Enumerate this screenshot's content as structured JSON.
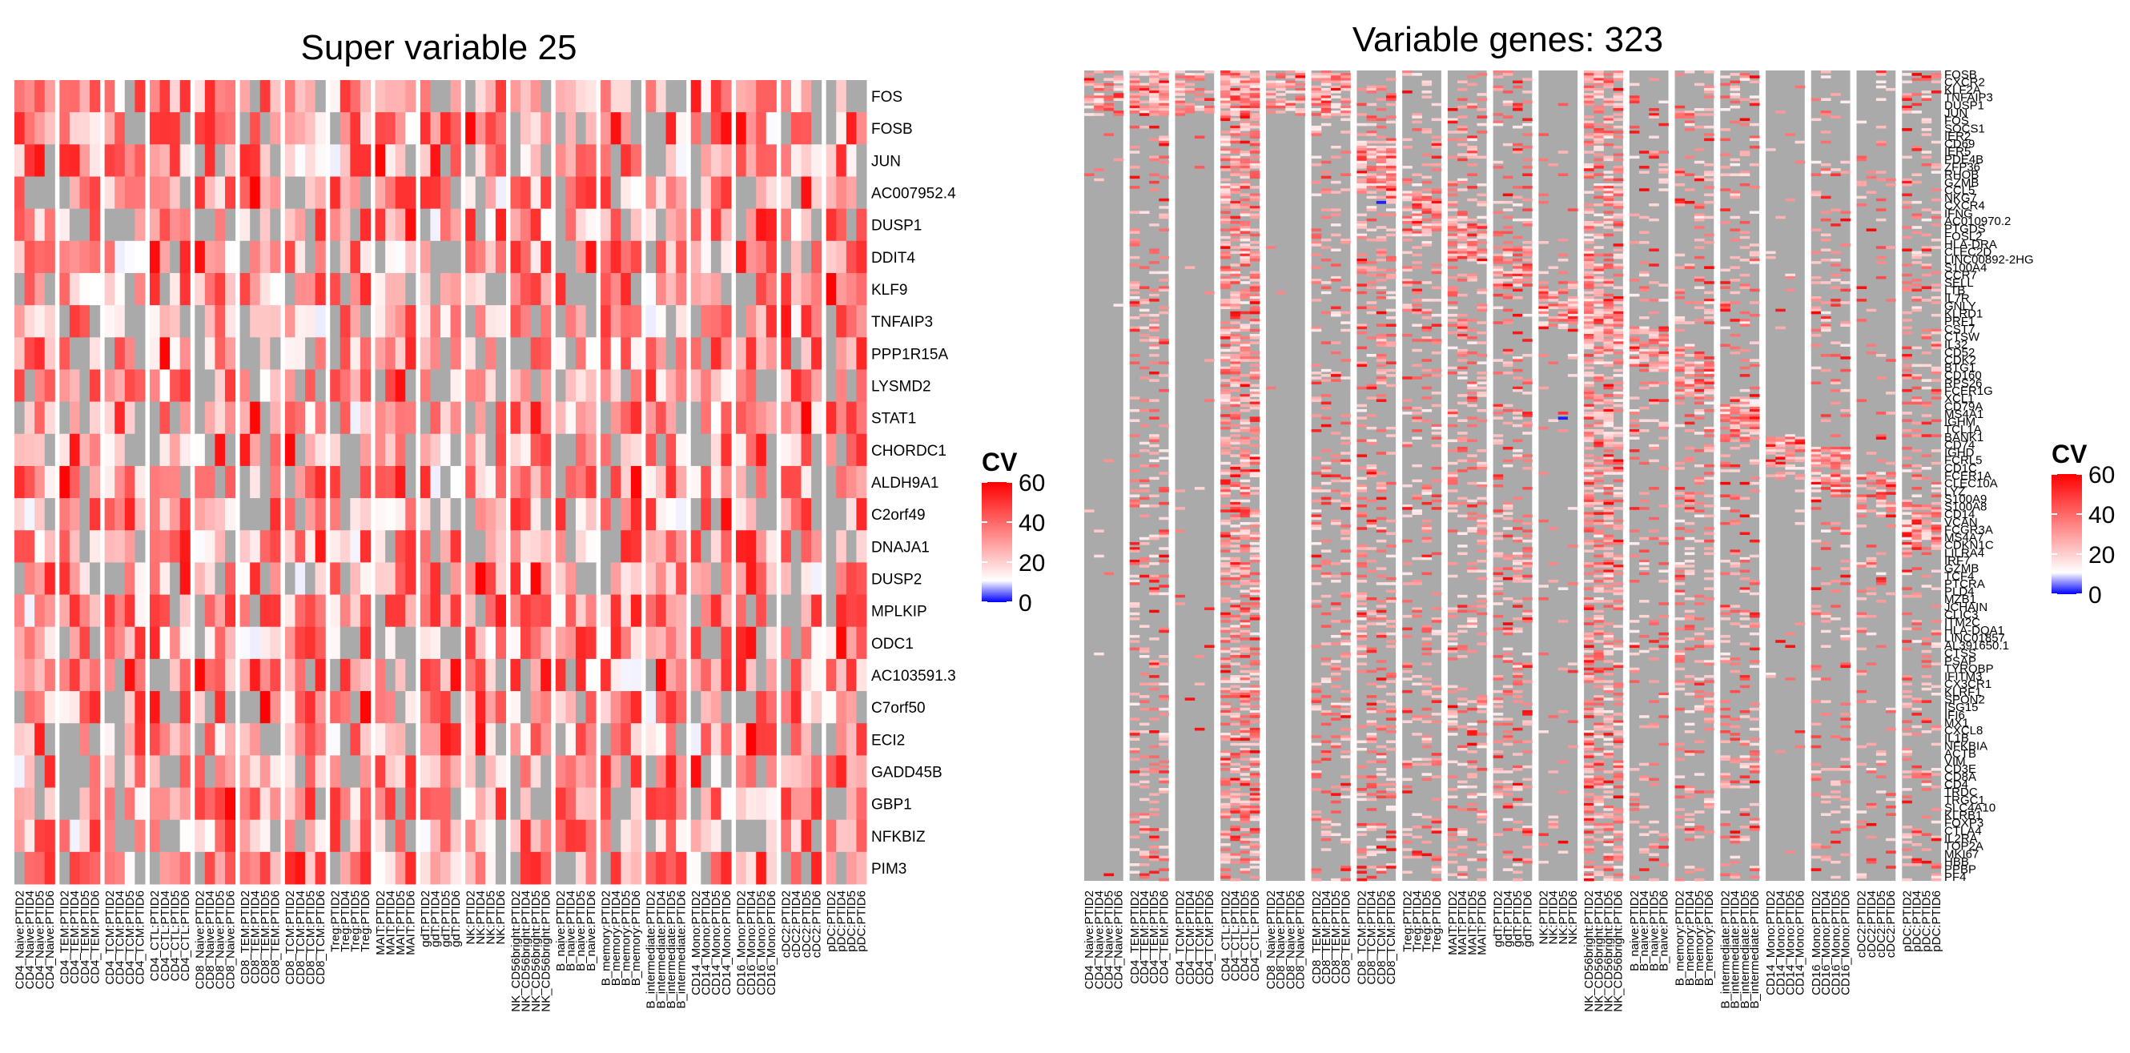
{
  "chart_data": [
    {
      "type": "heatmap",
      "title": "Super variable 25",
      "legend": {
        "title": "CV",
        "ticks": [
          0,
          20,
          40,
          60
        ],
        "range": [
          0,
          60
        ],
        "low_color": "#0000ff",
        "mid_color": "#ffffff",
        "high_color": "#ff0000",
        "na_color": "#aaaaaa"
      },
      "rows": [
        "FOS",
        "FOSB",
        "JUN",
        "AC007952.4",
        "DUSP1",
        "DDIT4",
        "KLF9",
        "TNFAIP3",
        "PPP1R15A",
        "LYSMD2",
        "STAT1",
        "CHORDC1",
        "ALDH9A1",
        "C2orf49",
        "DNAJA1",
        "DUSP2",
        "MPLKIP",
        "ODC1",
        "AC103591.3",
        "C7orf50",
        "ECI2",
        "GADD45B",
        "GBP1",
        "NFKBIZ",
        "PIM3"
      ],
      "column_groups": [
        {
          "name": "CD4_Naive",
          "columns": [
            "CD4_Naive:PTID2",
            "CD4_Naive:PTID4",
            "CD4_Naive:PTID5",
            "CD4_Naive:PTID6"
          ]
        },
        {
          "name": "CD4_TEM",
          "columns": [
            "CD4_TEM:PTID2",
            "CD4_TEM:PTID4",
            "CD4_TEM:PTID5",
            "CD4_TEM:PTID6"
          ]
        },
        {
          "name": "CD4_TCM",
          "columns": [
            "CD4_TCM:PTID2",
            "CD4_TCM:PTID4",
            "CD4_TCM:PTID5",
            "CD4_TCM:PTID6"
          ]
        },
        {
          "name": "CD4_CTL",
          "columns": [
            "CD4_CTL:PTID2",
            "CD4_CTL:PTID4",
            "CD4_CTL:PTID5",
            "CD4_CTL:PTID6"
          ]
        },
        {
          "name": "CD8_Naive",
          "columns": [
            "CD8_Naive:PTID2",
            "CD8_Naive:PTID4",
            "CD8_Naive:PTID5",
            "CD8_Naive:PTID6"
          ]
        },
        {
          "name": "CD8_TEM",
          "columns": [
            "CD8_TEM:PTID2",
            "CD8_TEM:PTID4",
            "CD8_TEM:PTID5",
            "CD8_TEM:PTID6"
          ]
        },
        {
          "name": "CD8_TCM",
          "columns": [
            "CD8_TCM:PTID2",
            "CD8_TCM:PTID4",
            "CD8_TCM:PTID5",
            "CD8_TCM:PTID6"
          ]
        },
        {
          "name": "Treg",
          "columns": [
            "Treg:PTID2",
            "Treg:PTID4",
            "Treg:PTID5",
            "Treg:PTID6"
          ]
        },
        {
          "name": "MAIT",
          "columns": [
            "MAIT:PTID2",
            "MAIT:PTID4",
            "MAIT:PTID5",
            "MAIT:PTID6"
          ]
        },
        {
          "name": "gdT",
          "columns": [
            "gdT:PTID2",
            "gdT:PTID4",
            "gdT:PTID5",
            "gdT:PTID6"
          ]
        },
        {
          "name": "NK",
          "columns": [
            "NK:PTID2",
            "NK:PTID4",
            "NK:PTID5",
            "NK:PTID6"
          ]
        },
        {
          "name": "NK_CD56bright",
          "columns": [
            "NK_CD56bright:PTID2",
            "NK_CD56bright:PTID4",
            "NK_CD56bright:PTID5",
            "NK_CD56bright:PTID6"
          ]
        },
        {
          "name": "B_naive",
          "columns": [
            "B_naive:PTID2",
            "B_naive:PTID4",
            "B_naive:PTID5",
            "B_naive:PTID6"
          ]
        },
        {
          "name": "B_memory",
          "columns": [
            "B_memory:PTID2",
            "B_memory:PTID4",
            "B_memory:PTID5",
            "B_memory:PTID6"
          ]
        },
        {
          "name": "B_intermediate",
          "columns": [
            "B_intermediate:PTID2",
            "B_intermediate:PTID4",
            "B_intermediate:PTID5",
            "B_intermediate:PTID6"
          ]
        },
        {
          "name": "CD14_Mono",
          "columns": [
            "CD14_Mono:PTID2",
            "CD14_Mono:PTID4",
            "CD14_Mono:PTID5",
            "CD14_Mono:PTID6"
          ]
        },
        {
          "name": "CD16_Mono",
          "columns": [
            "CD16_Mono:PTID2",
            "CD16_Mono:PTID4",
            "CD16_Mono:PTID5",
            "CD16_Mono:PTID6"
          ]
        },
        {
          "name": "cDC2",
          "columns": [
            "cDC2:PTID2",
            "cDC2:PTID4",
            "cDC2:PTID5",
            "cDC2:PTID6"
          ]
        },
        {
          "name": "pDC",
          "columns": [
            "pDC:PTID2",
            "pDC:PTID4",
            "pDC:PTID5",
            "pDC:PTID6"
          ]
        }
      ],
      "values_note": "Cell values shown only as color; approximate levels rendered with NA (grey) cells."
    },
    {
      "type": "heatmap",
      "title": "Variable genes: 323",
      "n_rows": 323,
      "legend": {
        "title": "CV",
        "ticks": [
          0,
          20,
          40,
          60
        ],
        "range": [
          0,
          60
        ],
        "low_color": "#0000ff",
        "mid_color": "#ffffff",
        "high_color": "#ff0000",
        "na_color": "#aaaaaa"
      },
      "visible_row_labels": [
        "FOSB",
        "CXCR2",
        "KLF2A",
        "TNFAIP3",
        "DUSP1",
        "JUN",
        "FOS",
        "SOCS1",
        "IER2",
        "CD69",
        "IER5",
        "PDE4B",
        "ZFP36",
        "RHOB",
        "GZMB",
        "CCL5",
        "NKG7",
        "CXCR4",
        "IFNG",
        "AC010970.2",
        "PTGDS",
        "FOSL2",
        "HLA-DRA",
        "CLEC2D",
        "LINC00892-2HG",
        "S100A4",
        "CCR7",
        "SELL",
        "LTB",
        "IL7R",
        "GNLY",
        "KLRD1",
        "PRF1",
        "CST7",
        "CTSW",
        "IL32",
        "CD52",
        "CDK2",
        "BTG1",
        "CD160",
        "RPS26",
        "FCER1G",
        "XCL1",
        "CD79A",
        "MS4A1",
        "IGHM",
        "TCL1A",
        "BANK1",
        "CD74",
        "IGHD",
        "FCRL5",
        "CD1C",
        "FCER1A",
        "CLEC10A",
        "LYZ",
        "S100A9",
        "S100A8",
        "CD14",
        "VCAN",
        "FCGR3A",
        "MS4A7",
        "CDKN1C",
        "LILRA4",
        "IRF7",
        "GZMB",
        "TCF4",
        "PTCRA",
        "PLD4",
        "MZB1",
        "JCHAIN",
        "CLIC3",
        "ITM2C",
        "HLA-DQA1",
        "LINC01857",
        "AL391650.1",
        "CTSS",
        "PSAP",
        "TYROBP",
        "IFITM3",
        "CX3CR1",
        "KLRF1",
        "SPON2",
        "ISG15",
        "IFI6",
        "MX1",
        "CXCL8",
        "IL1B",
        "NFKBIA",
        "ACTB",
        "VIM",
        "CD3E",
        "CD8A",
        "CD4",
        "TRDC",
        "TRGC1",
        "SLC4A10",
        "KLRB1",
        "FOXP3",
        "CTLA4",
        "IL2RA",
        "TOP2A",
        "MKI67",
        "HBB",
        "PPBP",
        "PF4"
      ],
      "column_groups_same_as": 0
    }
  ]
}
